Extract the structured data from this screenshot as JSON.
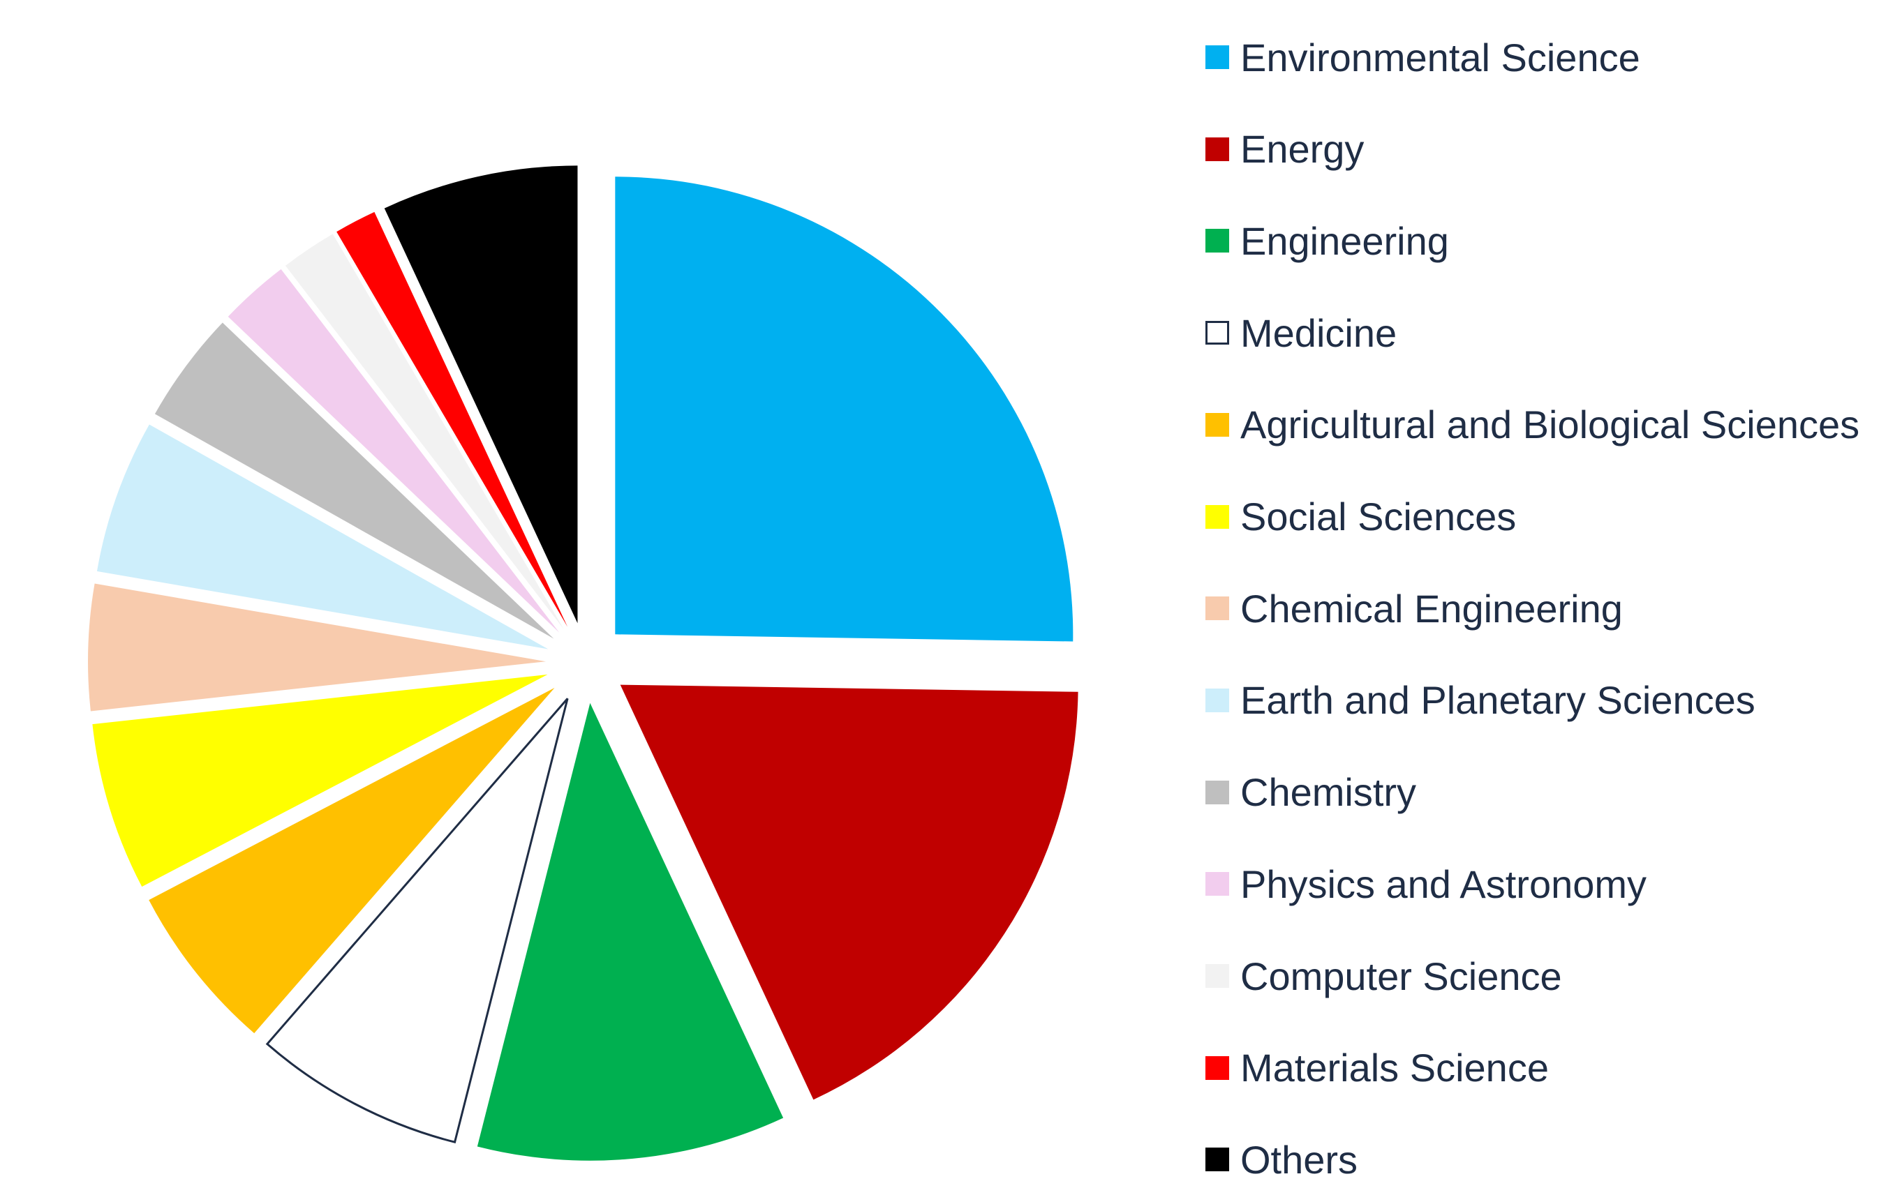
{
  "chart_data": {
    "type": "pie",
    "variant": "exploded",
    "slices": [
      {
        "label": "Environmental Science",
        "value": 25.5,
        "color": "#00b0f0"
      },
      {
        "label": "Energy",
        "value": 18.0,
        "color": "#c00000"
      },
      {
        "label": "Engineering",
        "value": 11.0,
        "color": "#00b050"
      },
      {
        "label": "Medicine",
        "value": 7.5,
        "color": "#ffffff",
        "stroke": "#1f2d45"
      },
      {
        "label": "Agricultural and Biological Sciences",
        "value": 6.0,
        "color": "#ffc000"
      },
      {
        "label": "Social Sciences",
        "value": 6.0,
        "color": "#ffff00"
      },
      {
        "label": "Chemical Engineering",
        "value": 4.5,
        "color": "#f8cbad"
      },
      {
        "label": "Earth and Planetary Sciences",
        "value": 5.5,
        "color": "#cdeefb"
      },
      {
        "label": "Chemistry",
        "value": 4.0,
        "color": "#bfbfbf"
      },
      {
        "label": "Physics and Astronomy",
        "value": 2.5,
        "color": "#f2cdee"
      },
      {
        "label": "Computer Science",
        "value": 2.0,
        "color": "#f2f2f2"
      },
      {
        "label": "Materials Science",
        "value": 1.5,
        "color": "#ff0000"
      },
      {
        "label": "Others",
        "value": 7.0,
        "color": "#000000"
      }
    ],
    "legend_position": "right"
  }
}
